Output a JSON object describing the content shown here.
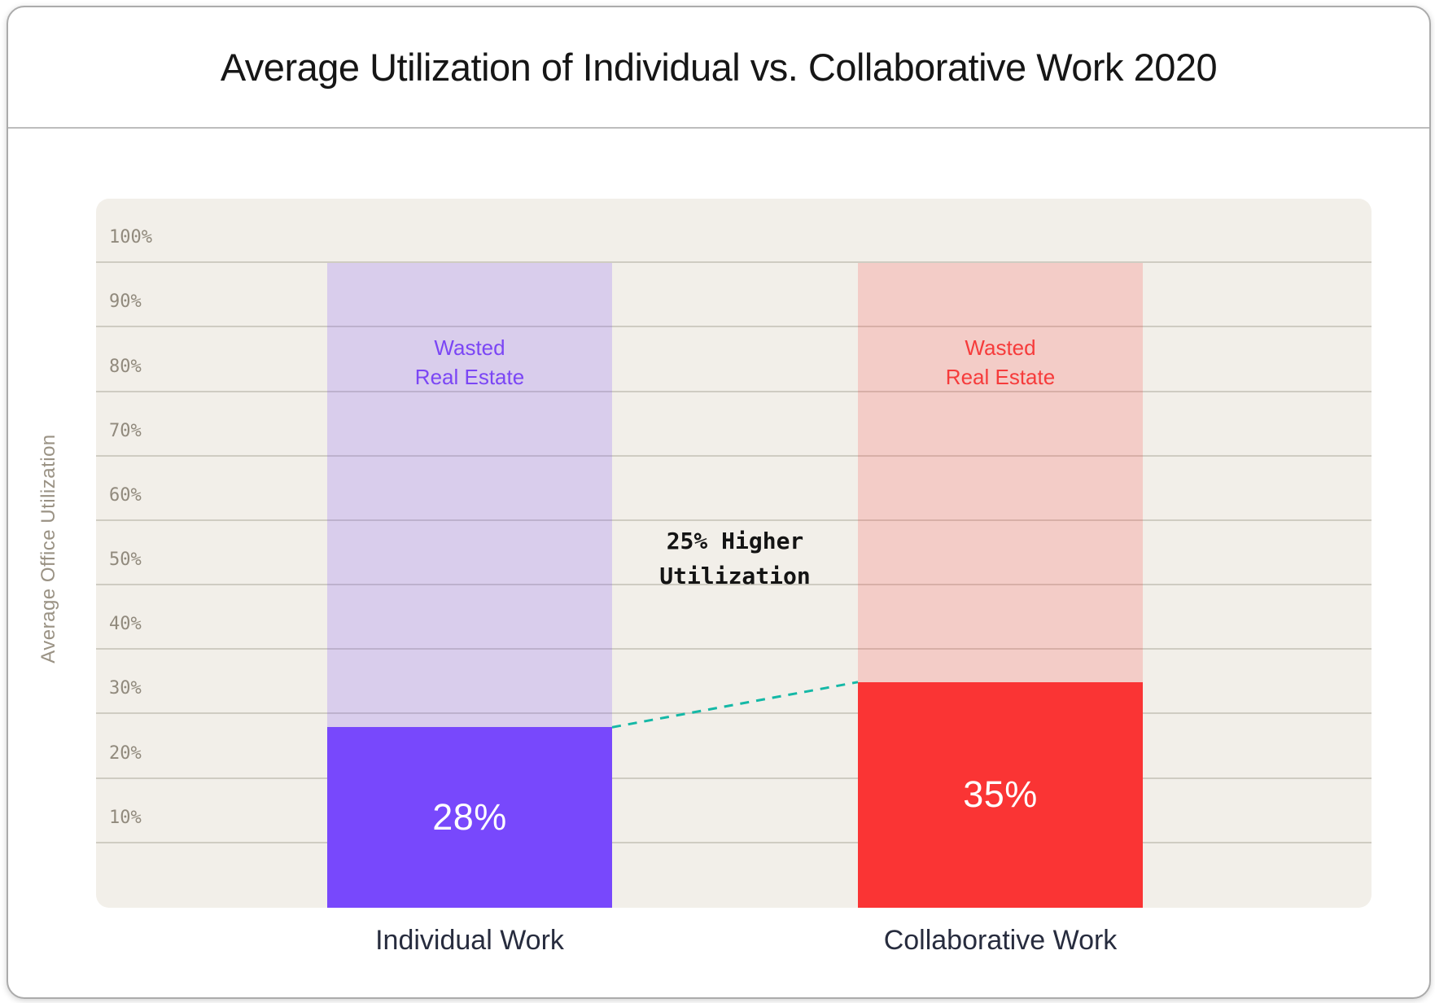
{
  "title": "Average Utilization of Individual vs. Collaborative Work 2020",
  "y_axis": {
    "title": "Average Office Utilization",
    "ticks": [
      "100%",
      "90%",
      "80%",
      "70%",
      "60%",
      "50%",
      "40%",
      "30%",
      "20%",
      "10%"
    ]
  },
  "bars": [
    {
      "category": "Individual Work",
      "value": 28,
      "value_label": "28%",
      "wasted_line1": "Wasted",
      "wasted_line2": "Real Estate",
      "bar_color": "#7848fc",
      "wasted_text_color": "#7b46f5"
    },
    {
      "category": "Collaborative Work",
      "value": 35,
      "value_label": "35%",
      "wasted_line1": "Wasted",
      "wasted_line2": "Real Estate",
      "bar_color": "#fa3434",
      "wasted_text_color": "#f63b3b"
    }
  ],
  "annotation": {
    "line1": "25% Higher",
    "line2": "Utilization"
  },
  "colors": {
    "plot_bg": "#f2efe9",
    "gridline": "#cfccc2",
    "tick_text": "#918a7d",
    "connector": "#14b8a6",
    "category_text": "#272c3e",
    "title_text": "#161616"
  },
  "chart_data": {
    "type": "bar",
    "title": "Average Utilization of Individual vs. Collaborative Work 2020",
    "categories": [
      "Individual Work",
      "Collaborative Work"
    ],
    "series": [
      {
        "name": "Average Office Utilization (utilized)",
        "values": [
          28,
          35
        ]
      },
      {
        "name": "Wasted Real Estate",
        "values": [
          72,
          65
        ]
      }
    ],
    "ylabel": "Average Office Utilization",
    "ylim": [
      0,
      100
    ],
    "ytick_labels": [
      "100%",
      "90%",
      "80%",
      "70%",
      "60%",
      "50%",
      "40%",
      "30%",
      "20%",
      "10%"
    ],
    "annotations": [
      "25% Higher Utilization"
    ],
    "grid": true,
    "legend_position": "none"
  }
}
